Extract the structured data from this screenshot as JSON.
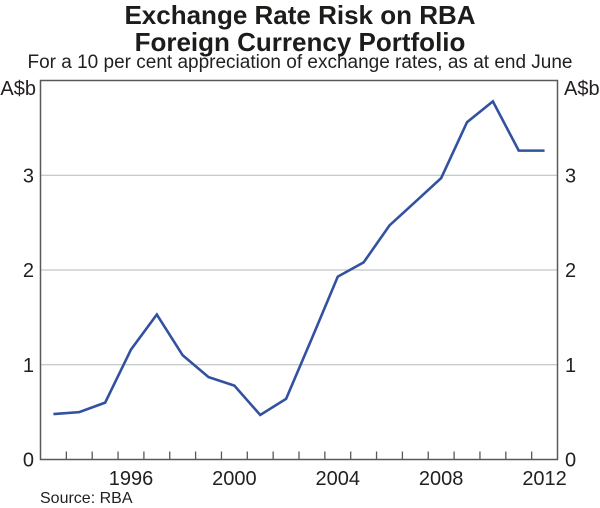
{
  "header": {
    "title_line1": "Exchange Rate Risk on RBA",
    "title_line2": "Foreign Currency Portfolio",
    "subtitle": "For a 10 per cent appreciation of exchange rates, as at end June"
  },
  "footer": {
    "source": "Source: RBA"
  },
  "chart_data": {
    "type": "line",
    "title": "Exchange Rate Risk on RBA Foreign Currency Portfolio",
    "subtitle": "For a 10 per cent appreciation of exchange rates, as at end June",
    "unit_label": "A$b",
    "x": [
      1993,
      1994,
      1995,
      1996,
      1997,
      1998,
      1999,
      2000,
      2001,
      2002,
      2003,
      2004,
      2005,
      2006,
      2007,
      2008,
      2009,
      2010,
      2011,
      2012
    ],
    "values": [
      0.48,
      0.5,
      0.6,
      1.16,
      1.53,
      1.1,
      0.87,
      0.78,
      0.47,
      0.64,
      1.28,
      1.93,
      2.08,
      2.47,
      2.72,
      2.97,
      3.56,
      3.78,
      3.26,
      3.26
    ],
    "series_name": "Exchange rate risk on RBA foreign currency portfolio",
    "xlabel": "",
    "ylabel": "A$b",
    "ylim": [
      0,
      4
    ],
    "yticks": [
      0,
      1,
      2,
      3
    ],
    "xticks_labeled": [
      1996,
      2000,
      2004,
      2008,
      2012
    ],
    "x_tick_interval_years": 1,
    "grid": "horizontal",
    "legend_position": "none",
    "line_color": "#32519f",
    "axis_color": "#58595b",
    "grid_color": "#b6b8ba",
    "text_color": "#231f20",
    "source": "Source: RBA"
  }
}
